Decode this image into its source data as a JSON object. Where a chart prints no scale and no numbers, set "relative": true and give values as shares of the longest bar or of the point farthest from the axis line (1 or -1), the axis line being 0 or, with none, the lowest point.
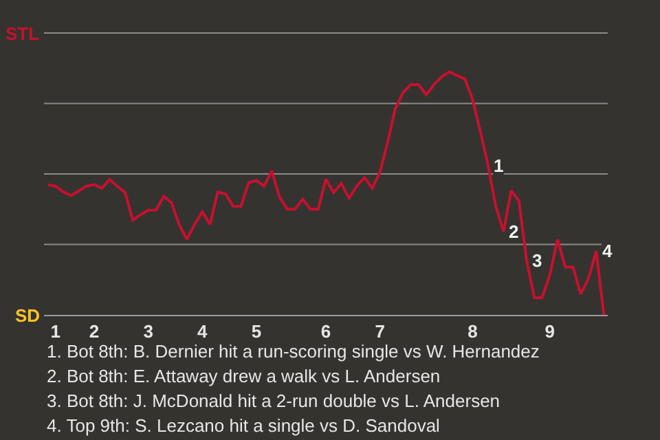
{
  "chart_data": {
    "type": "line",
    "relative": true,
    "categories": [
      null,
      "1",
      null,
      null,
      null,
      null,
      "2",
      null,
      null,
      null,
      null,
      null,
      null,
      "3",
      null,
      null,
      null,
      null,
      null,
      null,
      "4",
      null,
      null,
      null,
      null,
      null,
      null,
      "5",
      null,
      null,
      null,
      null,
      null,
      null,
      null,
      null,
      "6",
      null,
      null,
      null,
      null,
      null,
      null,
      "7",
      null,
      null,
      null,
      null,
      null,
      null,
      null,
      null,
      null,
      null,
      null,
      "8",
      null,
      null,
      null,
      null,
      null,
      null,
      null,
      null,
      null,
      "9",
      null,
      null,
      null,
      null,
      null,
      null,
      null
    ],
    "series": [
      {
        "values": [
          0.535,
          0.53,
          0.506,
          0.491,
          0.51,
          0.53,
          0.536,
          0.521,
          0.557,
          0.529,
          0.503,
          0.39,
          0.412,
          0.431,
          0.431,
          0.488,
          0.462,
          0.372,
          0.311,
          0.372,
          0.424,
          0.372,
          0.506,
          0.498,
          0.447,
          0.447,
          0.544,
          0.553,
          0.53,
          0.592,
          0.485,
          0.435,
          0.435,
          0.476,
          0.435,
          0.435,
          0.559,
          0.503,
          0.541,
          0.48,
          0.53,
          0.565,
          0.521,
          0.587,
          0.71,
          0.85,
          0.915,
          0.948,
          0.948,
          0.906,
          0.948,
          0.98,
          1,
          0.985,
          0.971,
          0.887,
          0.755,
          0.615,
          0.447,
          0.343,
          0.512,
          0.468,
          0.222,
          0.071,
          0.071,
          0.165,
          0.31,
          0.197,
          0.197,
          0.086,
          0.149,
          0.262,
          0
        ],
        "color": "#c8102e"
      }
    ],
    "grid": "y",
    "annotations": [
      "STL",
      "SD",
      {
        "text": "1",
        "y": 0.615
      },
      {
        "text": "2",
        "y": 0.343
      },
      {
        "text": "3",
        "y": 0.222
      },
      {
        "text": "4",
        "y": 0.262
      },
      "1. Bot 8th: B. Dernier hit a run-scoring single vs W. Hernandez",
      "2. Bot 8th: E. Attaway drew a walk vs L. Andersen",
      "3. Bot 8th: J. McDonald hit a 2-run double vs L. Andersen",
      "4. Top 9th: S. Lezcano hit a single vs D. Sandoval"
    ]
  }
}
